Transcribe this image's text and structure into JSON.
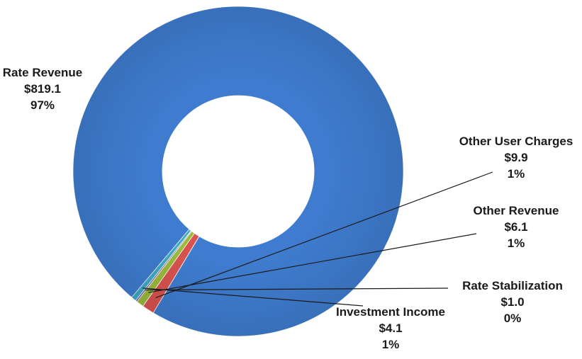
{
  "chart_data": {
    "type": "pie",
    "variant": "donut",
    "title": "",
    "legend": "none",
    "slices": [
      {
        "name": "Rate Revenue",
        "value": 819.1,
        "value_label": "$819.1",
        "percent_label": "97%",
        "color": "#3f7ccf"
      },
      {
        "name": "Other User Charges",
        "value": 9.9,
        "value_label": "$9.9",
        "percent_label": "1%",
        "color": "#d9534f"
      },
      {
        "name": "Other Revenue",
        "value": 6.1,
        "value_label": "$6.1",
        "percent_label": "1%",
        "color": "#9bbb3b"
      },
      {
        "name": "Rate Stabilization",
        "value": 1.0,
        "value_label": "$1.0",
        "percent_label": "0%",
        "color": "#7d5ea8"
      },
      {
        "name": "Investment Income",
        "value": 4.1,
        "value_label": "$4.1",
        "percent_label": "1%",
        "color": "#3eaac4"
      }
    ]
  }
}
